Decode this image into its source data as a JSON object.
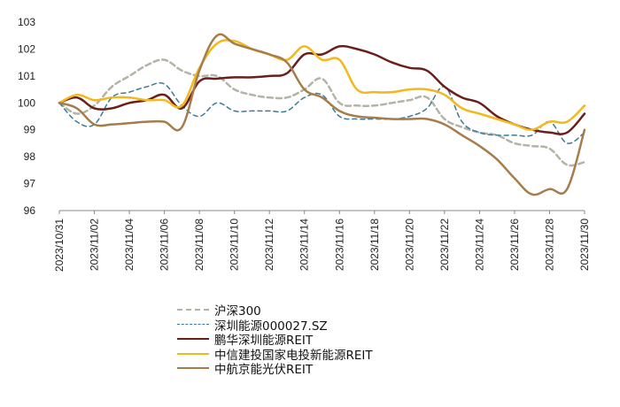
{
  "chart_data": {
    "type": "line",
    "x": [
      "2023/10/31",
      "2023/11/01",
      "2023/11/02",
      "2023/11/03",
      "2023/11/04",
      "2023/11/05",
      "2023/11/06",
      "2023/11/07",
      "2023/11/08",
      "2023/11/09",
      "2023/11/10",
      "2023/11/11",
      "2023/11/12",
      "2023/11/13",
      "2023/11/14",
      "2023/11/15",
      "2023/11/16",
      "2023/11/17",
      "2023/11/18",
      "2023/11/19",
      "2023/11/20",
      "2023/11/21",
      "2023/11/22",
      "2023/11/23",
      "2023/11/24",
      "2023/11/25",
      "2023/11/26",
      "2023/11/27",
      "2023/11/28",
      "2023/11/29",
      "2023/11/30"
    ],
    "xticks": [
      "2023/10/31",
      "2023/11/02",
      "2023/11/04",
      "2023/11/06",
      "2023/11/08",
      "2023/11/10",
      "2023/11/12",
      "2023/11/14",
      "2023/11/16",
      "2023/11/18",
      "2023/11/20",
      "2023/11/22",
      "2023/11/24",
      "2023/11/26",
      "2023/11/28",
      "2023/11/30"
    ],
    "yticks": [
      96,
      97,
      98,
      99,
      100,
      101,
      102,
      103
    ],
    "ylim": [
      96,
      103
    ],
    "grid": false,
    "legend_position": "bottom",
    "series": [
      {
        "name": "沪深300",
        "color": "#b3b3a8",
        "dash": "6,4",
        "width": 2.5,
        "values": [
          100.0,
          99.6,
          99.9,
          100.6,
          101.0,
          101.4,
          101.6,
          101.2,
          101.0,
          101.0,
          100.5,
          100.3,
          100.2,
          100.2,
          100.5,
          100.9,
          100.0,
          99.9,
          99.9,
          100.0,
          100.1,
          100.2,
          99.4,
          99.1,
          98.9,
          98.8,
          98.5,
          98.4,
          98.3,
          97.7,
          97.8
        ]
      },
      {
        "name": "深圳能源000027.SZ",
        "color": "#3d7a96",
        "dash": "5,4",
        "width": 1.5,
        "values": [
          100.0,
          99.3,
          99.2,
          100.2,
          100.4,
          100.6,
          100.7,
          99.9,
          99.5,
          100.0,
          99.7,
          99.7,
          99.7,
          99.7,
          100.2,
          100.3,
          99.5,
          99.4,
          99.4,
          99.4,
          99.5,
          99.8,
          100.6,
          99.3,
          98.9,
          98.8,
          98.8,
          98.8,
          99.3,
          98.5,
          98.9
        ]
      },
      {
        "name": "鹏华深圳能源REIT",
        "color": "#6b1f1a",
        "dash": "",
        "width": 2.5,
        "values": [
          100.0,
          100.2,
          99.8,
          99.8,
          100.0,
          100.1,
          100.3,
          99.8,
          100.8,
          100.9,
          100.95,
          100.95,
          101.0,
          101.1,
          101.8,
          101.8,
          102.1,
          102.0,
          101.8,
          101.5,
          101.3,
          101.2,
          100.6,
          100.2,
          100.0,
          99.5,
          99.2,
          99.0,
          98.9,
          98.9,
          99.6
        ]
      },
      {
        "name": "中信建投国家电投新能源REIT",
        "color": "#f2b81c",
        "dash": "",
        "width": 2.5,
        "values": [
          100.0,
          100.3,
          100.1,
          100.2,
          100.2,
          100.1,
          100.1,
          99.9,
          101.3,
          102.2,
          102.3,
          102.0,
          101.8,
          101.6,
          102.1,
          101.6,
          101.6,
          100.5,
          100.4,
          100.4,
          100.5,
          100.5,
          100.3,
          99.8,
          99.6,
          99.4,
          99.2,
          99.0,
          99.3,
          99.3,
          99.9
        ]
      },
      {
        "name": "中航京能光伏REIT",
        "color": "#a67c4a",
        "dash": "",
        "width": 2.5,
        "values": [
          100.0,
          99.8,
          99.2,
          99.2,
          99.25,
          99.3,
          99.3,
          99.1,
          101.2,
          102.5,
          102.2,
          102.0,
          101.8,
          101.5,
          100.5,
          100.2,
          99.7,
          99.5,
          99.45,
          99.4,
          99.4,
          99.4,
          99.2,
          98.8,
          98.4,
          97.9,
          97.2,
          96.6,
          96.8,
          96.8,
          99.0
        ]
      }
    ]
  }
}
